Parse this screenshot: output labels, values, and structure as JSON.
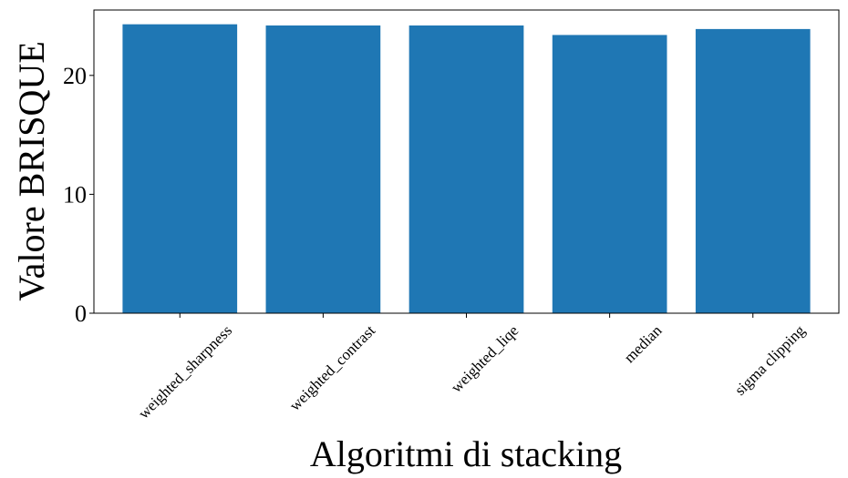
{
  "chart_data": {
    "type": "bar",
    "categories": [
      "weighted_sharpness",
      "weighted_contrast",
      "weighted_liqe",
      "median",
      "sigma clipping"
    ],
    "values": [
      24.3,
      24.2,
      24.2,
      23.4,
      23.9
    ],
    "title": "",
    "xlabel": "Algoritmi di stacking",
    "ylabel": "Valore BRISQUE",
    "ylim": [
      0,
      25.5
    ],
    "yticks": [
      0,
      10,
      20
    ],
    "bar_color": "#1f77b4",
    "grid": false,
    "legend": "none"
  }
}
